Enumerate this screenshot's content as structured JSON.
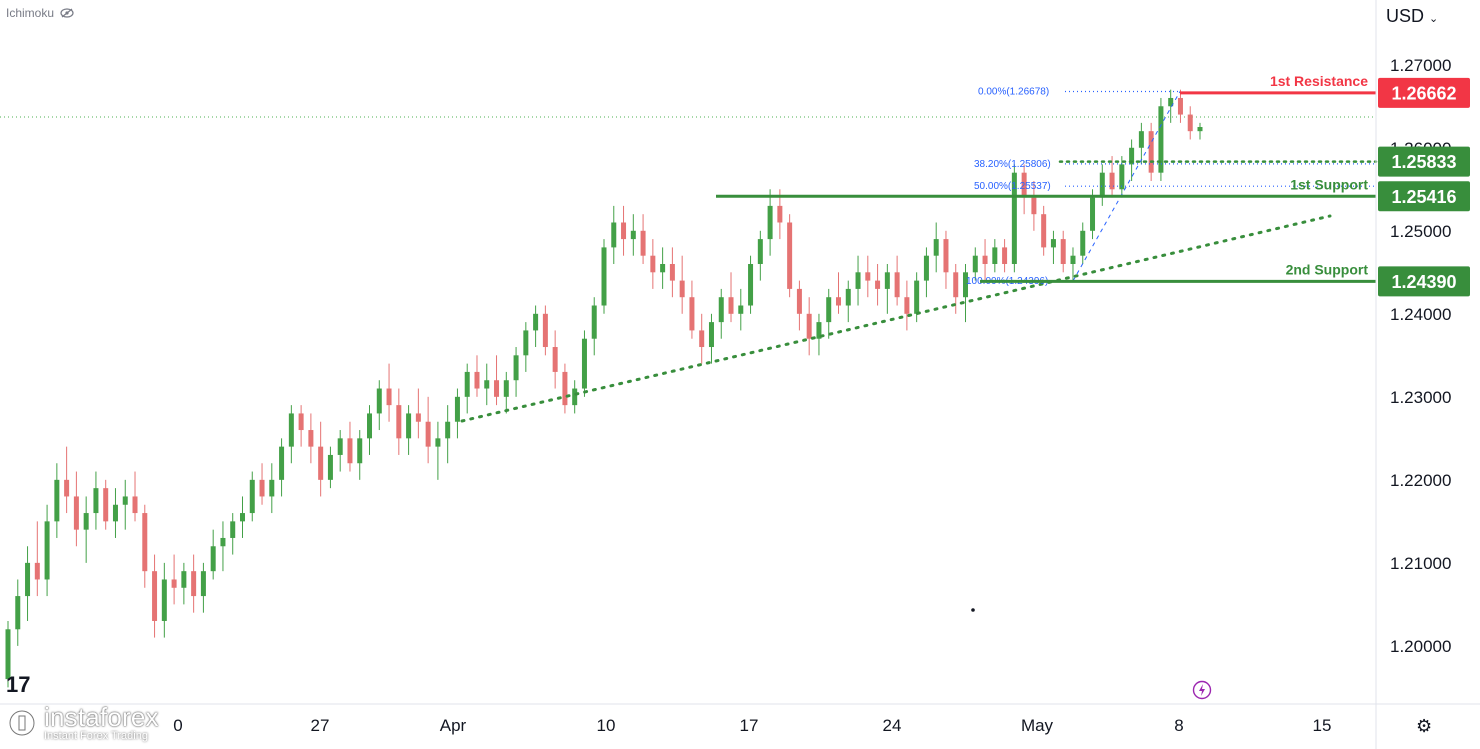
{
  "indicator": {
    "label": "Ichimoku",
    "icon": "eye-off-icon"
  },
  "currency": {
    "label": "USD",
    "icon": "chevron-down-icon"
  },
  "branding": {
    "name": "instaforex",
    "tagline": "Instant Forex Trading"
  },
  "settings_icon": "gear-icon",
  "chart_data": {
    "type": "candlestick",
    "x_ticks": [
      "0",
      "27",
      "Apr",
      "10",
      "17",
      "24",
      "May",
      "8",
      "15"
    ],
    "y_ticks": [
      "1.27000",
      "1.26000",
      "1.25000",
      "1.24000",
      "1.23000",
      "1.22000",
      "1.21000",
      "1.20000"
    ],
    "ylim": [
      1.193,
      1.2778
    ],
    "grid": false,
    "levels": [
      {
        "label": "1st Resistance",
        "value": "1.26662",
        "color": "#f23645"
      },
      {
        "label": "",
        "value": "1.25833",
        "color": "#388e3c"
      },
      {
        "label": "1st Support",
        "value": "1.25416",
        "color": "#388e3c"
      },
      {
        "label": "2nd Support",
        "value": "1.24390",
        "color": "#388e3c"
      }
    ],
    "fibonacci": [
      {
        "label": "0.00%(1.26678)",
        "value": 1.26678
      },
      {
        "label": "38.20%(1.25806)",
        "value": 1.25806
      },
      {
        "label": "50.00%(1.25537)",
        "value": 1.25537
      },
      {
        "label": "100.00%(1.24396)",
        "value": 1.24396
      }
    ],
    "candles_ohlc": [
      [
        1.196,
        1.203,
        1.195,
        1.202
      ],
      [
        1.202,
        1.208,
        1.2,
        1.206
      ],
      [
        1.206,
        1.212,
        1.203,
        1.21
      ],
      [
        1.21,
        1.215,
        1.206,
        1.208
      ],
      [
        1.208,
        1.217,
        1.206,
        1.215
      ],
      [
        1.215,
        1.222,
        1.213,
        1.22
      ],
      [
        1.22,
        1.224,
        1.216,
        1.218
      ],
      [
        1.218,
        1.221,
        1.212,
        1.214
      ],
      [
        1.214,
        1.218,
        1.21,
        1.216
      ],
      [
        1.216,
        1.221,
        1.214,
        1.219
      ],
      [
        1.219,
        1.22,
        1.214,
        1.215
      ],
      [
        1.215,
        1.219,
        1.213,
        1.217
      ],
      [
        1.217,
        1.22,
        1.214,
        1.218
      ],
      [
        1.218,
        1.221,
        1.215,
        1.216
      ],
      [
        1.216,
        1.217,
        1.207,
        1.209
      ],
      [
        1.209,
        1.211,
        1.201,
        1.203
      ],
      [
        1.203,
        1.21,
        1.201,
        1.208
      ],
      [
        1.208,
        1.211,
        1.205,
        1.207
      ],
      [
        1.207,
        1.21,
        1.205,
        1.209
      ],
      [
        1.209,
        1.211,
        1.204,
        1.206
      ],
      [
        1.206,
        1.21,
        1.204,
        1.209
      ],
      [
        1.209,
        1.214,
        1.208,
        1.212
      ],
      [
        1.212,
        1.215,
        1.209,
        1.213
      ],
      [
        1.213,
        1.216,
        1.211,
        1.215
      ],
      [
        1.215,
        1.218,
        1.213,
        1.216
      ],
      [
        1.216,
        1.221,
        1.215,
        1.22
      ],
      [
        1.22,
        1.222,
        1.217,
        1.218
      ],
      [
        1.218,
        1.222,
        1.216,
        1.22
      ],
      [
        1.22,
        1.225,
        1.218,
        1.224
      ],
      [
        1.224,
        1.229,
        1.222,
        1.228
      ],
      [
        1.228,
        1.229,
        1.224,
        1.226
      ],
      [
        1.226,
        1.228,
        1.222,
        1.224
      ],
      [
        1.224,
        1.227,
        1.218,
        1.22
      ],
      [
        1.22,
        1.224,
        1.219,
        1.223
      ],
      [
        1.223,
        1.226,
        1.221,
        1.225
      ],
      [
        1.225,
        1.227,
        1.221,
        1.222
      ],
      [
        1.222,
        1.226,
        1.22,
        1.225
      ],
      [
        1.225,
        1.229,
        1.223,
        1.228
      ],
      [
        1.228,
        1.232,
        1.226,
        1.231
      ],
      [
        1.231,
        1.234,
        1.227,
        1.229
      ],
      [
        1.229,
        1.231,
        1.223,
        1.225
      ],
      [
        1.225,
        1.229,
        1.223,
        1.228
      ],
      [
        1.228,
        1.231,
        1.225,
        1.227
      ],
      [
        1.227,
        1.23,
        1.222,
        1.224
      ],
      [
        1.224,
        1.227,
        1.22,
        1.225
      ],
      [
        1.225,
        1.229,
        1.222,
        1.227
      ],
      [
        1.227,
        1.231,
        1.225,
        1.23
      ],
      [
        1.23,
        1.234,
        1.228,
        1.233
      ],
      [
        1.233,
        1.235,
        1.23,
        1.231
      ],
      [
        1.231,
        1.234,
        1.229,
        1.232
      ],
      [
        1.232,
        1.235,
        1.229,
        1.23
      ],
      [
        1.23,
        1.233,
        1.228,
        1.232
      ],
      [
        1.232,
        1.236,
        1.23,
        1.235
      ],
      [
        1.235,
        1.239,
        1.233,
        1.238
      ],
      [
        1.238,
        1.241,
        1.236,
        1.24
      ],
      [
        1.24,
        1.241,
        1.235,
        1.236
      ],
      [
        1.236,
        1.238,
        1.231,
        1.233
      ],
      [
        1.233,
        1.234,
        1.228,
        1.229
      ],
      [
        1.229,
        1.232,
        1.228,
        1.231
      ],
      [
        1.231,
        1.238,
        1.23,
        1.237
      ],
      [
        1.237,
        1.242,
        1.235,
        1.241
      ],
      [
        1.241,
        1.249,
        1.24,
        1.248
      ],
      [
        1.248,
        1.253,
        1.246,
        1.251
      ],
      [
        1.251,
        1.253,
        1.247,
        1.249
      ],
      [
        1.249,
        1.252,
        1.247,
        1.25
      ],
      [
        1.25,
        1.252,
        1.246,
        1.247
      ],
      [
        1.247,
        1.249,
        1.243,
        1.245
      ],
      [
        1.245,
        1.248,
        1.243,
        1.246
      ],
      [
        1.246,
        1.248,
        1.242,
        1.244
      ],
      [
        1.244,
        1.247,
        1.24,
        1.242
      ],
      [
        1.242,
        1.244,
        1.237,
        1.238
      ],
      [
        1.238,
        1.24,
        1.234,
        1.236
      ],
      [
        1.236,
        1.24,
        1.234,
        1.239
      ],
      [
        1.239,
        1.243,
        1.237,
        1.242
      ],
      [
        1.242,
        1.245,
        1.239,
        1.24
      ],
      [
        1.24,
        1.243,
        1.238,
        1.241
      ],
      [
        1.241,
        1.247,
        1.24,
        1.246
      ],
      [
        1.246,
        1.25,
        1.244,
        1.249
      ],
      [
        1.249,
        1.255,
        1.247,
        1.253
      ],
      [
        1.253,
        1.255,
        1.249,
        1.251
      ],
      [
        1.251,
        1.252,
        1.242,
        1.243
      ],
      [
        1.243,
        1.244,
        1.238,
        1.24
      ],
      [
        1.24,
        1.242,
        1.235,
        1.237
      ],
      [
        1.237,
        1.24,
        1.235,
        1.239
      ],
      [
        1.239,
        1.243,
        1.237,
        1.242
      ],
      [
        1.242,
        1.245,
        1.24,
        1.241
      ],
      [
        1.241,
        1.244,
        1.239,
        1.243
      ],
      [
        1.243,
        1.247,
        1.241,
        1.245
      ],
      [
        1.245,
        1.247,
        1.242,
        1.244
      ],
      [
        1.244,
        1.246,
        1.241,
        1.243
      ],
      [
        1.243,
        1.246,
        1.24,
        1.245
      ],
      [
        1.245,
        1.247,
        1.241,
        1.242
      ],
      [
        1.242,
        1.244,
        1.238,
        1.24
      ],
      [
        1.24,
        1.245,
        1.239,
        1.244
      ],
      [
        1.244,
        1.248,
        1.242,
        1.247
      ],
      [
        1.247,
        1.251,
        1.245,
        1.249
      ],
      [
        1.249,
        1.25,
        1.243,
        1.245
      ],
      [
        1.245,
        1.246,
        1.24,
        1.242
      ],
      [
        1.242,
        1.246,
        1.239,
        1.245
      ],
      [
        1.245,
        1.248,
        1.244,
        1.247
      ],
      [
        1.247,
        1.249,
        1.244,
        1.246
      ],
      [
        1.246,
        1.249,
        1.245,
        1.248
      ],
      [
        1.248,
        1.249,
        1.245,
        1.246
      ],
      [
        1.246,
        1.258,
        1.245,
        1.257
      ],
      [
        1.257,
        1.258,
        1.252,
        1.254
      ],
      [
        1.254,
        1.256,
        1.25,
        1.252
      ],
      [
        1.252,
        1.253,
        1.247,
        1.248
      ],
      [
        1.248,
        1.25,
        1.246,
        1.249
      ],
      [
        1.249,
        1.25,
        1.245,
        1.246
      ],
      [
        1.246,
        1.248,
        1.244,
        1.247
      ],
      [
        1.247,
        1.251,
        1.246,
        1.25
      ],
      [
        1.25,
        1.255,
        1.249,
        1.254
      ],
      [
        1.254,
        1.258,
        1.253,
        1.257
      ],
      [
        1.257,
        1.259,
        1.254,
        1.255
      ],
      [
        1.255,
        1.259,
        1.254,
        1.258
      ],
      [
        1.258,
        1.261,
        1.256,
        1.26
      ],
      [
        1.26,
        1.263,
        1.258,
        1.262
      ],
      [
        1.262,
        1.263,
        1.256,
        1.257
      ],
      [
        1.257,
        1.266,
        1.256,
        1.265
      ],
      [
        1.265,
        1.267,
        1.263,
        1.266
      ],
      [
        1.266,
        1.267,
        1.263,
        1.264
      ],
      [
        1.264,
        1.265,
        1.261,
        1.262
      ],
      [
        1.262,
        1.263,
        1.261,
        1.2625
      ]
    ]
  }
}
